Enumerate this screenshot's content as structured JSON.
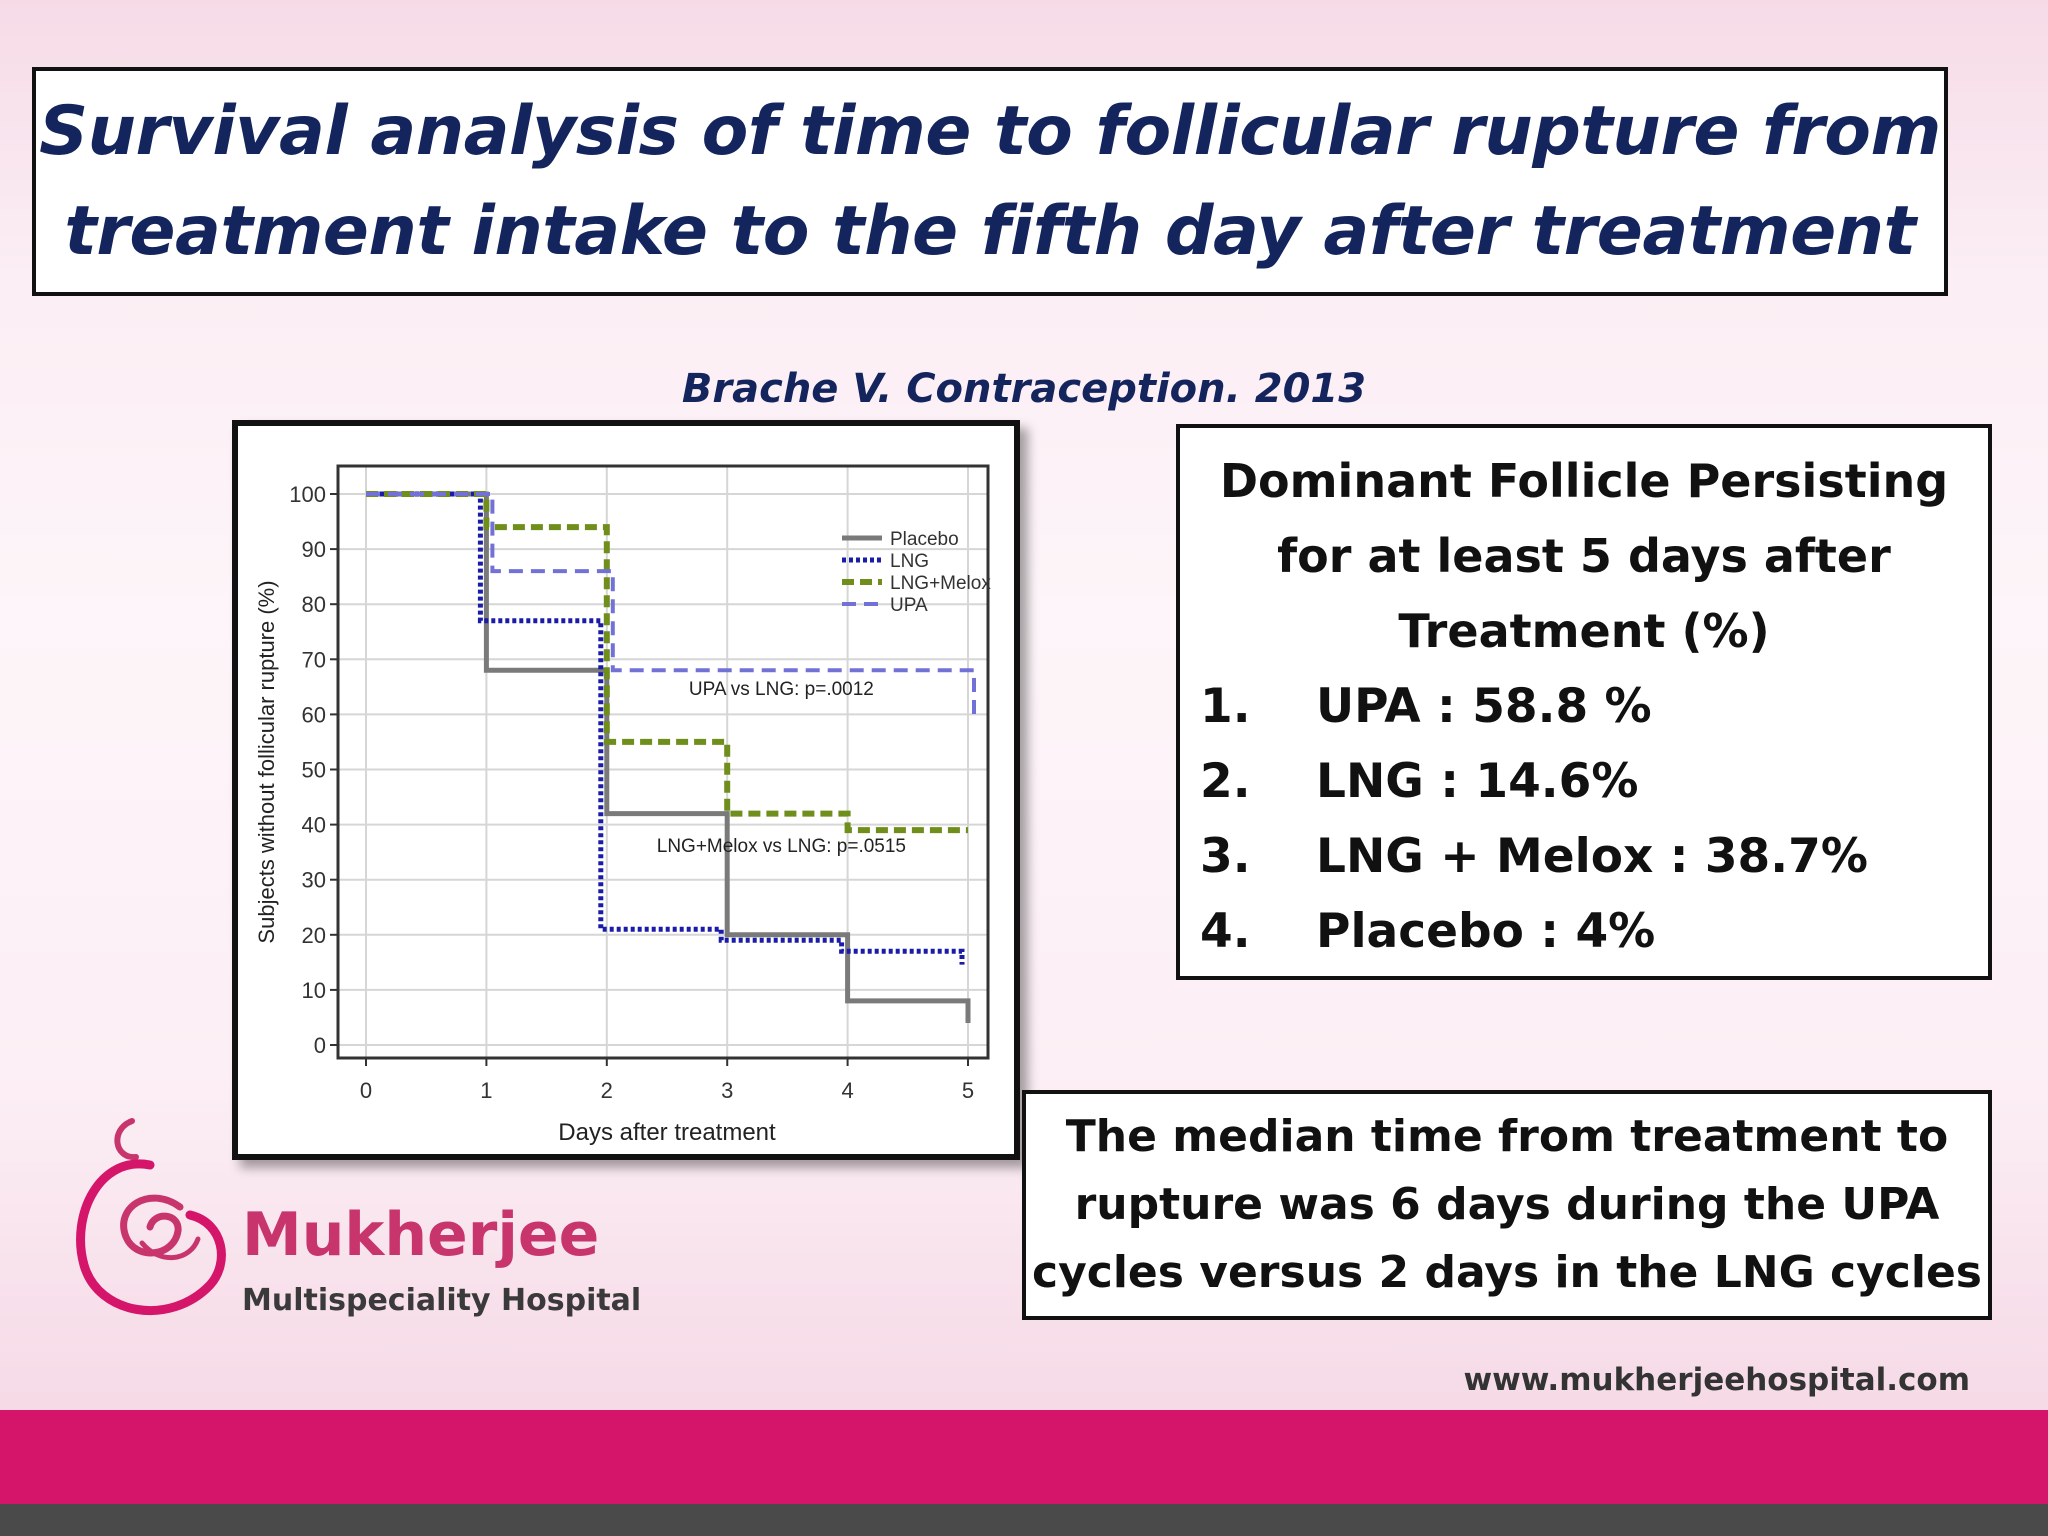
{
  "slide": {
    "title_line1": "Survival analysis of time to follicular rupture from",
    "title_line2": "treatment intake to the fifth day after treatment",
    "citation": "Brache V. Contraception. 2013"
  },
  "info_box": {
    "heading_line1": "Dominant Follicle Persisting",
    "heading_line2": "for at least 5 days after",
    "heading_line3": "Treatment (%)",
    "items": [
      {
        "num": "1.",
        "text": "UPA : 58.8 %"
      },
      {
        "num": "2.",
        "text": "LNG : 14.6%"
      },
      {
        "num": "3.",
        "text": "LNG + Melox : 38.7%"
      },
      {
        "num": "4.",
        "text": "Placebo : 4%"
      }
    ]
  },
  "median_box": {
    "line1": "The median time from treatment to",
    "line2": "rupture was 6 days during the UPA",
    "line3": "cycles versus 2 days in the LNG cycles"
  },
  "branding": {
    "name": "Mukherjee",
    "subtitle": "Multispeciality Hospital",
    "website": "www.mukherjeehospital.com",
    "colors": {
      "pink": "#d4156a",
      "magenta_text": "#c8356d",
      "dark_band": "#4a4a4a"
    },
    "logo_icon": "mother-child-swirl-icon"
  },
  "chart_data": {
    "type": "line",
    "step": true,
    "xlabel": "Days after treatment",
    "ylabel": "Subjects without follicular rupture (%)",
    "xlim": [
      0,
      5
    ],
    "ylim": [
      0,
      100
    ],
    "x_ticks": [
      "0",
      "1",
      "2",
      "3",
      "4",
      "5"
    ],
    "y_ticks": [
      "0",
      "10",
      "20",
      "30",
      "40",
      "50",
      "60",
      "70",
      "80",
      "90",
      "100"
    ],
    "grid": true,
    "legend_position": "top-right",
    "series": [
      {
        "name": "Placebo",
        "color": "#7a7a7a",
        "dash": "solid",
        "points": [
          [
            0,
            100
          ],
          [
            1,
            100
          ],
          [
            1,
            68
          ],
          [
            2,
            68
          ],
          [
            2,
            42
          ],
          [
            3,
            42
          ],
          [
            3,
            20
          ],
          [
            4,
            20
          ],
          [
            4,
            8
          ],
          [
            5,
            8
          ],
          [
            5,
            4
          ]
        ]
      },
      {
        "name": "LNG",
        "color": "#1b1baa",
        "dash": "dotted",
        "points": [
          [
            0,
            100
          ],
          [
            0.95,
            100
          ],
          [
            0.95,
            77
          ],
          [
            1.95,
            77
          ],
          [
            1.95,
            21
          ],
          [
            2.95,
            21
          ],
          [
            2.95,
            19
          ],
          [
            3.95,
            19
          ],
          [
            3.95,
            17
          ],
          [
            4.95,
            17
          ],
          [
            4.95,
            14.6
          ]
        ]
      },
      {
        "name": "LNG+Melox",
        "color": "#6f8e1c",
        "dash": "dashed",
        "points": [
          [
            0,
            100
          ],
          [
            1,
            100
          ],
          [
            1,
            94
          ],
          [
            2,
            94
          ],
          [
            2,
            55
          ],
          [
            3,
            55
          ],
          [
            3,
            42
          ],
          [
            4,
            42
          ],
          [
            4,
            39
          ],
          [
            5,
            39
          ]
        ]
      },
      {
        "name": "UPA",
        "color": "#7272d6",
        "dash": "dashed-light",
        "points": [
          [
            0,
            100
          ],
          [
            1.05,
            100
          ],
          [
            1.05,
            86
          ],
          [
            2.05,
            86
          ],
          [
            2.05,
            68
          ],
          [
            5.05,
            68
          ],
          [
            5.05,
            58.8
          ]
        ]
      }
    ],
    "annotations": [
      {
        "text": "UPA vs LNG: p=.0012",
        "x": 3.45,
        "y": 63.5
      },
      {
        "text": "LNG+Melox vs LNG: p=.0515",
        "x": 3.45,
        "y": 35
      }
    ]
  }
}
